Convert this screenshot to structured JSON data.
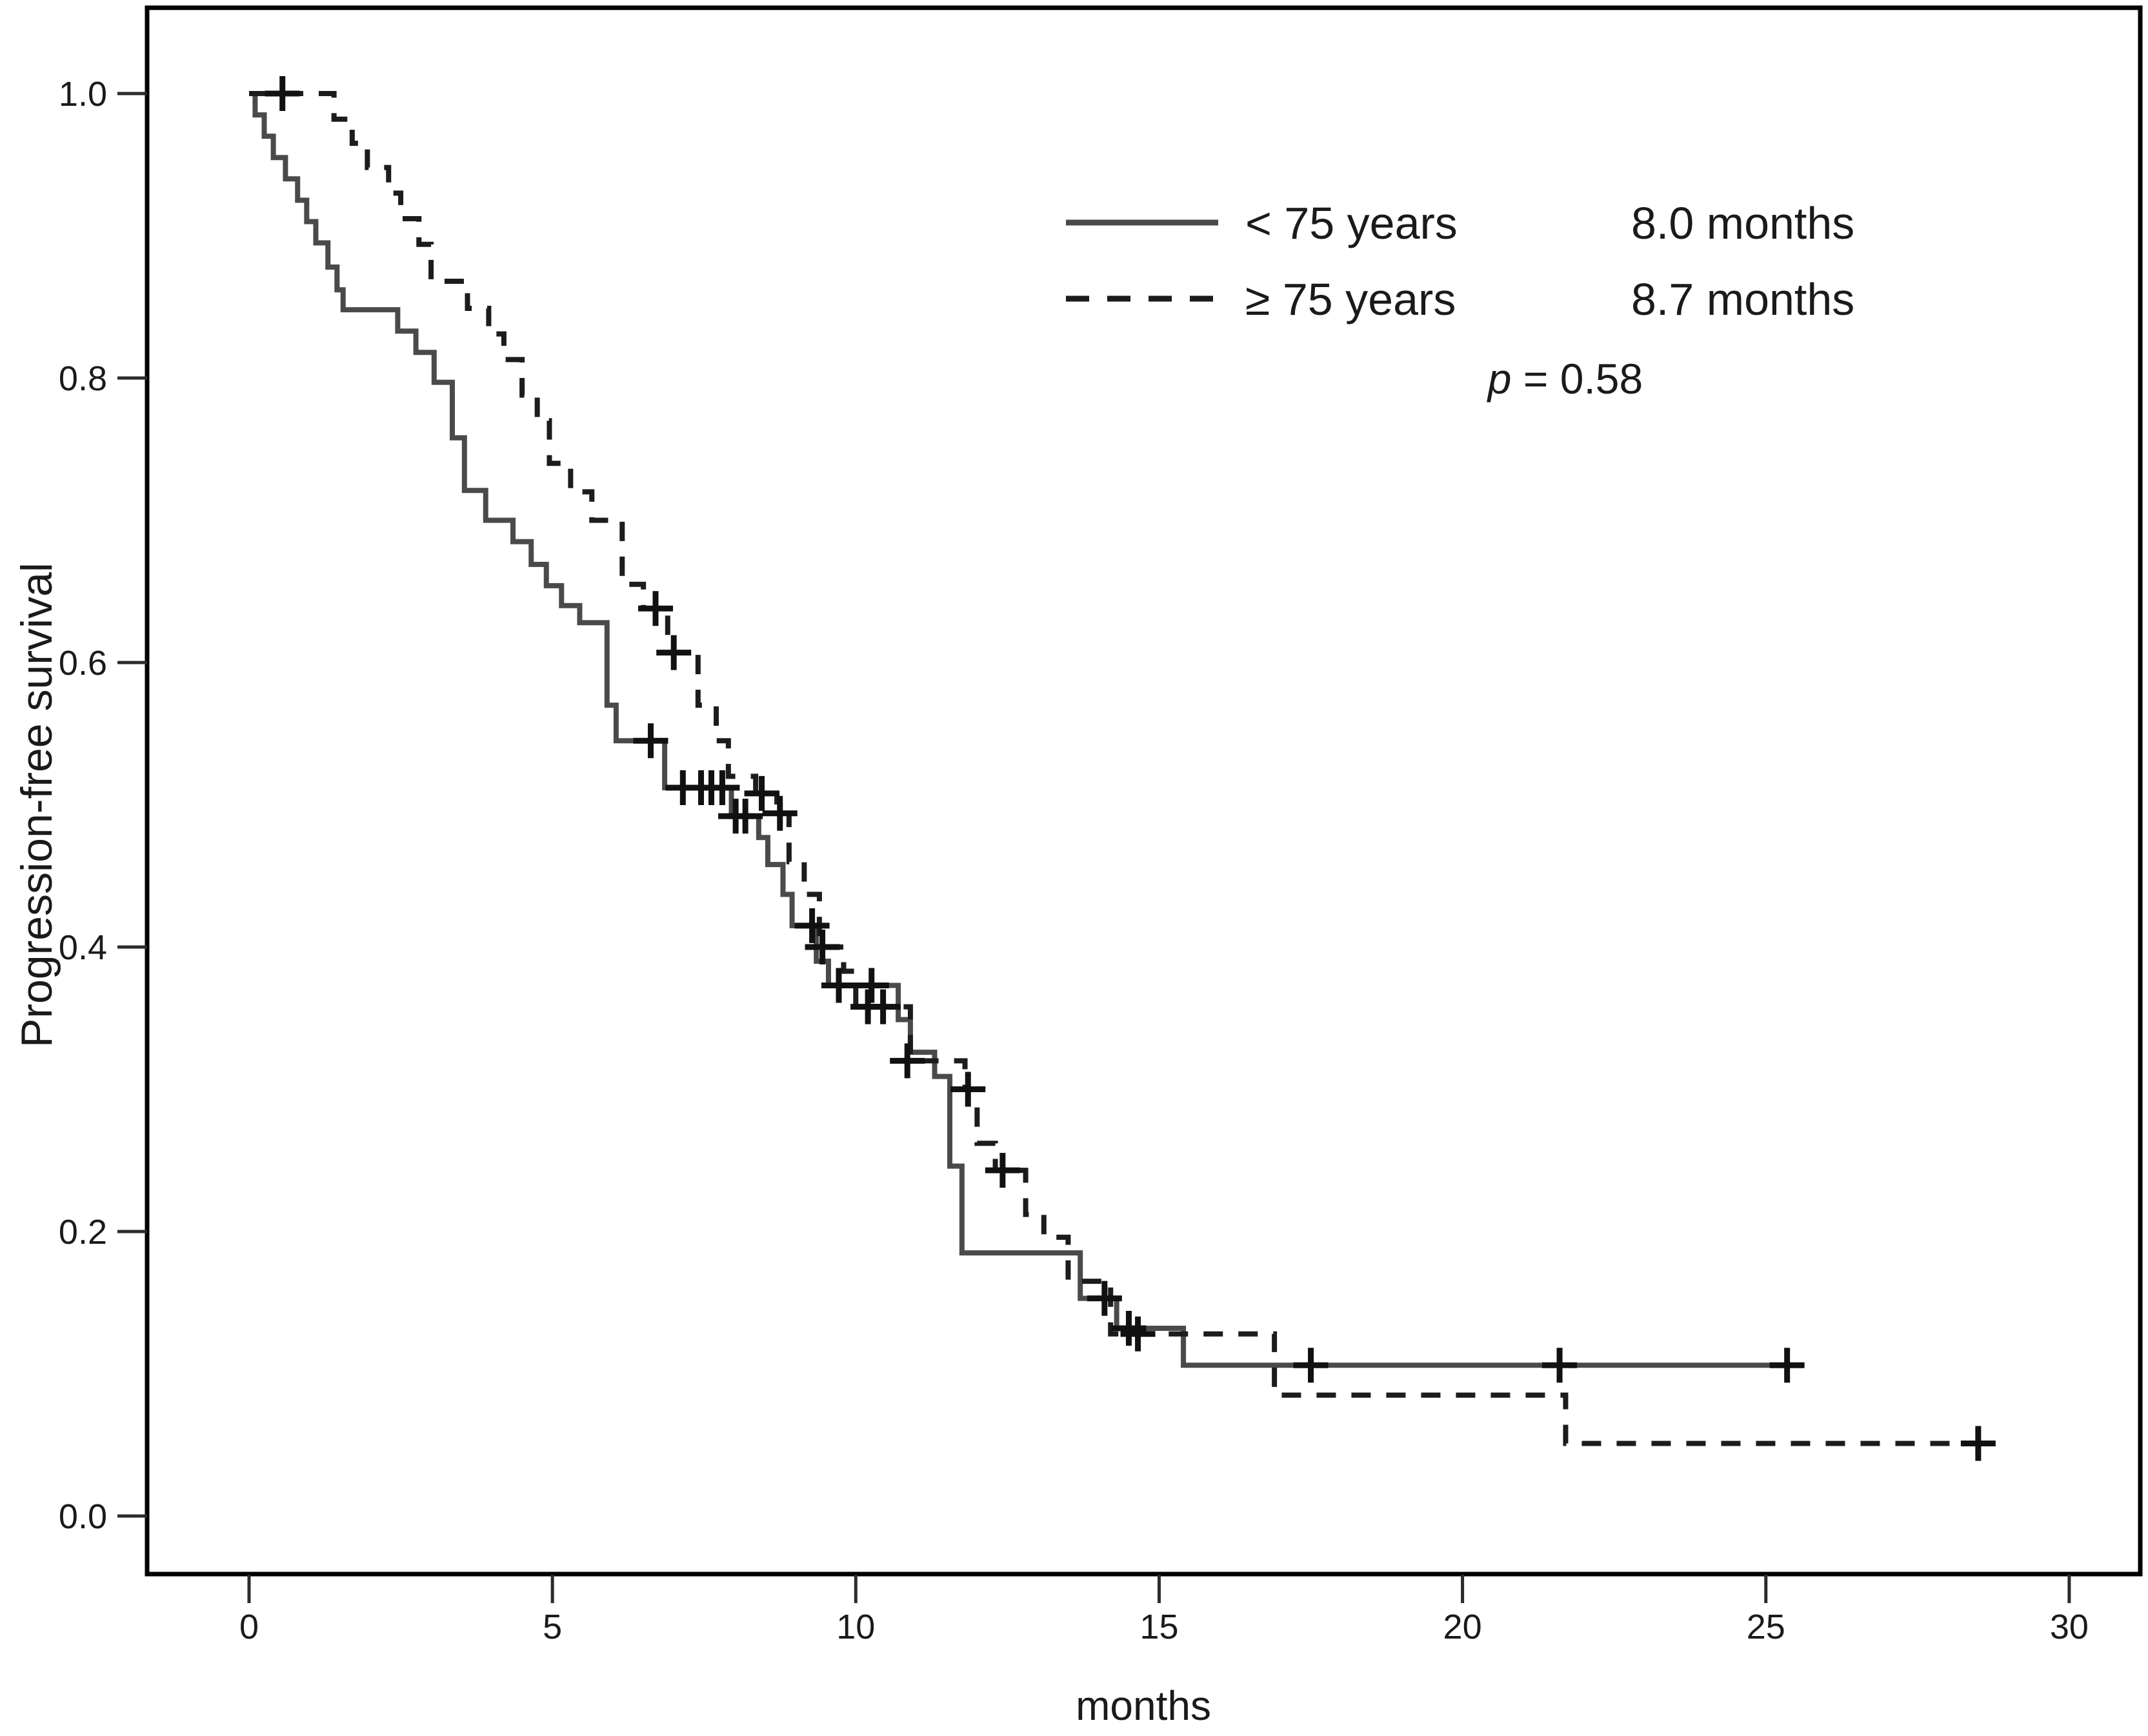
{
  "figure": {
    "background": "#ffffff",
    "frame_color": "#000000",
    "text_color": "#1a1a1a"
  },
  "chart_data": {
    "type": "line",
    "subtype": "kaplan-meier-step",
    "title": "",
    "xlabel": "months",
    "ylabel": "Progression-free survival",
    "x_ticks": [
      "0",
      "5",
      "10",
      "15",
      "20",
      "25",
      "30"
    ],
    "y_ticks": [
      "0.0",
      "0.2",
      "0.4",
      "0.6",
      "0.8",
      "1.0"
    ],
    "xlim": [
      -1.7,
      31.3
    ],
    "ylim": [
      -0.05,
      1.06
    ],
    "grid": false,
    "legend_position": "upper-right-inside",
    "annotation": {
      "p_symbol": "p",
      "p_rest": " = 0.58"
    },
    "series": [
      {
        "name": "< 75 years",
        "median_label": "8.0 months",
        "style": "solid",
        "color": "#4a4a4a",
        "start": [
          0,
          1.0
        ],
        "end_time": 25.45,
        "steps": [
          [
            0.1,
            0.985
          ],
          [
            0.25,
            0.97
          ],
          [
            0.4,
            0.955
          ],
          [
            0.6,
            0.94
          ],
          [
            0.8,
            0.925
          ],
          [
            0.95,
            0.91
          ],
          [
            1.1,
            0.895
          ],
          [
            1.3,
            0.878
          ],
          [
            1.45,
            0.862
          ],
          [
            1.55,
            0.848
          ],
          [
            2.45,
            0.833
          ],
          [
            2.75,
            0.818
          ],
          [
            3.05,
            0.797
          ],
          [
            3.35,
            0.758
          ],
          [
            3.55,
            0.721
          ],
          [
            3.9,
            0.7
          ],
          [
            4.35,
            0.685
          ],
          [
            4.65,
            0.669
          ],
          [
            4.9,
            0.654
          ],
          [
            5.15,
            0.64
          ],
          [
            5.45,
            0.628
          ],
          [
            5.9,
            0.57
          ],
          [
            6.05,
            0.545
          ],
          [
            6.85,
            0.512
          ],
          [
            7.95,
            0.492
          ],
          [
            8.4,
            0.477
          ],
          [
            8.55,
            0.458
          ],
          [
            8.8,
            0.437
          ],
          [
            8.95,
            0.415
          ],
          [
            9.35,
            0.39
          ],
          [
            9.55,
            0.373
          ],
          [
            10.7,
            0.349
          ],
          [
            10.9,
            0.326
          ],
          [
            11.3,
            0.309
          ],
          [
            11.55,
            0.246
          ],
          [
            11.75,
            0.185
          ],
          [
            13.7,
            0.153
          ],
          [
            14.3,
            0.132
          ],
          [
            15.4,
            0.106
          ]
        ],
        "censors": [
          [
            6.62,
            0.545
          ],
          [
            7.15,
            0.512
          ],
          [
            7.45,
            0.512
          ],
          [
            7.62,
            0.512
          ],
          [
            7.8,
            0.512
          ],
          [
            8.02,
            0.492
          ],
          [
            8.18,
            0.492
          ],
          [
            9.28,
            0.415
          ],
          [
            9.72,
            0.373
          ],
          [
            10.26,
            0.373
          ],
          [
            14.1,
            0.153
          ],
          [
            14.5,
            0.132
          ],
          [
            17.5,
            0.106
          ],
          [
            21.6,
            0.106
          ],
          [
            25.35,
            0.106
          ]
        ]
      },
      {
        "name": "≥ 75 years",
        "median_label": "8.7 months",
        "style": "dashed",
        "color": "#1c1c1c",
        "start": [
          0,
          1.0
        ],
        "end_time": 28.8,
        "steps": [
          [
            1.4,
            0.982
          ],
          [
            1.7,
            0.965
          ],
          [
            1.95,
            0.948
          ],
          [
            2.3,
            0.93
          ],
          [
            2.5,
            0.912
          ],
          [
            2.8,
            0.894
          ],
          [
            3.0,
            0.868
          ],
          [
            3.6,
            0.849
          ],
          [
            3.95,
            0.831
          ],
          [
            4.2,
            0.813
          ],
          [
            4.5,
            0.788
          ],
          [
            4.75,
            0.77
          ],
          [
            4.95,
            0.74
          ],
          [
            5.3,
            0.72
          ],
          [
            5.65,
            0.7
          ],
          [
            6.15,
            0.655
          ],
          [
            6.5,
            0.638
          ],
          [
            6.9,
            0.607
          ],
          [
            7.4,
            0.57
          ],
          [
            7.7,
            0.545
          ],
          [
            7.9,
            0.52
          ],
          [
            8.35,
            0.508
          ],
          [
            8.7,
            0.494
          ],
          [
            8.9,
            0.46
          ],
          [
            9.15,
            0.437
          ],
          [
            9.4,
            0.4
          ],
          [
            9.8,
            0.383
          ],
          [
            10.0,
            0.358
          ],
          [
            10.9,
            0.32
          ],
          [
            11.8,
            0.3
          ],
          [
            12.0,
            0.262
          ],
          [
            12.3,
            0.243
          ],
          [
            12.8,
            0.212
          ],
          [
            13.1,
            0.196
          ],
          [
            13.5,
            0.165
          ],
          [
            14.2,
            0.128
          ],
          [
            16.9,
            0.085
          ],
          [
            21.7,
            0.051
          ]
        ],
        "censors": [
          [
            0.55,
            1.0
          ],
          [
            6.7,
            0.638
          ],
          [
            7.0,
            0.607
          ],
          [
            8.45,
            0.508
          ],
          [
            8.75,
            0.494
          ],
          [
            9.45,
            0.4
          ],
          [
            10.2,
            0.358
          ],
          [
            10.45,
            0.358
          ],
          [
            10.85,
            0.32
          ],
          [
            11.85,
            0.3
          ],
          [
            12.42,
            0.243
          ],
          [
            14.65,
            0.128
          ],
          [
            28.5,
            0.051
          ]
        ]
      }
    ]
  }
}
